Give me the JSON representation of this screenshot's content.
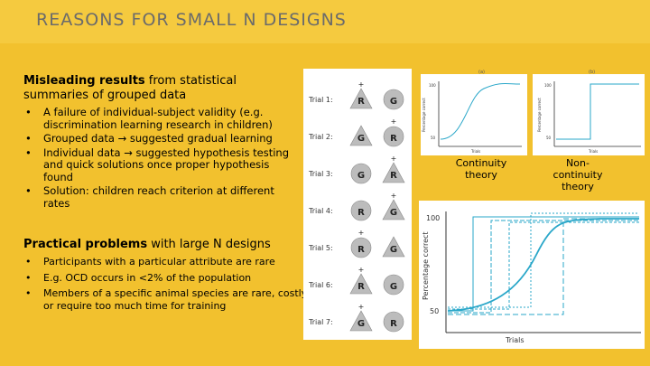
{
  "title": "REASONS FOR SMALL N DESIGNS",
  "section1": {
    "heading_bold": "Misleading results",
    "heading_rest": " from statistical summaries of grouped data",
    "bullets": [
      "A failure of individual-subject validity (e.g. discrimination learning research in children)",
      "Grouped data → suggested gradual learning",
      "Individual data → suggested hypothesis testing and quick solutions once proper hypothesis found",
      "Solution: children reach criterion at different rates"
    ]
  },
  "section2": {
    "heading_bold": "Practical problems",
    "heading_rest": " with large N designs",
    "bullets": [
      "Participants with a particular attribute are rare",
      "E.g. OCD occurs in <2% of the population",
      "Members of a specific animal species are rare, costly, or require too much time for training"
    ]
  },
  "trials": [
    {
      "label": "Trial 1:",
      "left": "R",
      "right": "G"
    },
    {
      "label": "Trial 2:",
      "left": "G",
      "right": "R"
    },
    {
      "label": "Trial 3:",
      "left": "G",
      "right": "R"
    },
    {
      "label": "Trial 4:",
      "left": "R",
      "right": "G"
    },
    {
      "label": "Trial 5:",
      "left": "R",
      "right": "G"
    },
    {
      "label": "Trial 6:",
      "left": "R",
      "right": "G"
    },
    {
      "label": "Trial 7:",
      "left": "G",
      "right": "R"
    }
  ],
  "small_charts": {
    "a_label": "(a)",
    "b_label": "(b)",
    "ylabel": "Percentage correct",
    "xlabel": "Trials",
    "y_top": "100",
    "y_bottom": "50"
  },
  "theories": {
    "left": "Continuity theory",
    "right": "Non-continuity theory"
  },
  "big_chart": {
    "ylabel": "Percentage correct",
    "xlabel": "Trials",
    "y_top": "100",
    "y_bottom": "50"
  },
  "colors": {
    "accent": "#2aa7c9",
    "background": "#f2c12e"
  }
}
